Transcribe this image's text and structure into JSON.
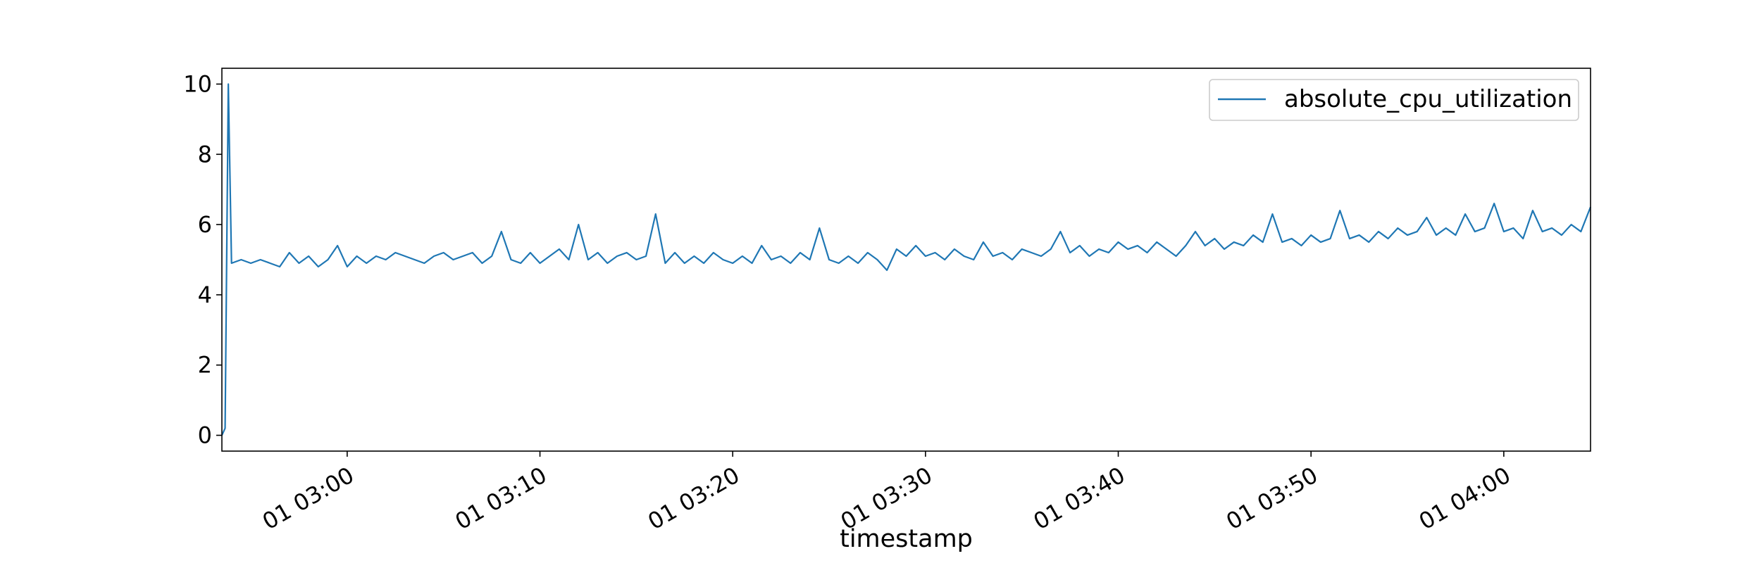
{
  "chart_data": {
    "type": "line",
    "title": "",
    "xlabel": "timestamp",
    "ylabel": "",
    "ylim": [
      -0.45,
      10.45
    ],
    "xlim": [
      "01 02:53:30",
      "01 04:04:30"
    ],
    "grid": false,
    "legend": {
      "placement": "top-right",
      "entries": [
        "absolute_cpu_utilization"
      ]
    },
    "colors": {
      "series": "#1f77b4",
      "axes": "#000000",
      "background": "#ffffff"
    },
    "yticks": [
      {
        "value": 0,
        "label": "0"
      },
      {
        "value": 2,
        "label": "2"
      },
      {
        "value": 4,
        "label": "4"
      },
      {
        "value": 6,
        "label": "6"
      },
      {
        "value": 8,
        "label": "8"
      },
      {
        "value": 10,
        "label": "10"
      }
    ],
    "xticks": [
      {
        "value": "01 03:00:00",
        "label": "01 03:00"
      },
      {
        "value": "01 03:10:00",
        "label": "01 03:10"
      },
      {
        "value": "01 03:20:00",
        "label": "01 03:20"
      },
      {
        "value": "01 03:30:00",
        "label": "01 03:30"
      },
      {
        "value": "01 03:40:00",
        "label": "01 03:40"
      },
      {
        "value": "01 03:50:00",
        "label": "01 03:50"
      },
      {
        "value": "01 04:00:00",
        "label": "01 04:00"
      }
    ],
    "series": [
      {
        "name": "absolute_cpu_utilization",
        "points": [
          [
            "01 02:53:30",
            0.0
          ],
          [
            "01 02:53:40",
            0.2
          ],
          [
            "01 02:53:50",
            10.0
          ],
          [
            "01 02:54:00",
            4.9
          ],
          [
            "01 02:54:30",
            5.0
          ],
          [
            "01 02:55:00",
            4.9
          ],
          [
            "01 02:55:30",
            5.0
          ],
          [
            "01 02:56:00",
            4.9
          ],
          [
            "01 02:56:30",
            4.8
          ],
          [
            "01 02:57:00",
            5.2
          ],
          [
            "01 02:57:30",
            4.9
          ],
          [
            "01 02:58:00",
            5.1
          ],
          [
            "01 02:58:30",
            4.8
          ],
          [
            "01 02:59:00",
            5.0
          ],
          [
            "01 02:59:30",
            5.4
          ],
          [
            "01 03:00:00",
            4.8
          ],
          [
            "01 03:00:30",
            5.1
          ],
          [
            "01 03:01:00",
            4.9
          ],
          [
            "01 03:01:30",
            5.1
          ],
          [
            "01 03:02:00",
            5.0
          ],
          [
            "01 03:02:30",
            5.2
          ],
          [
            "01 03:03:00",
            5.1
          ],
          [
            "01 03:03:30",
            5.0
          ],
          [
            "01 03:04:00",
            4.9
          ],
          [
            "01 03:04:30",
            5.1
          ],
          [
            "01 03:05:00",
            5.2
          ],
          [
            "01 03:05:30",
            5.0
          ],
          [
            "01 03:06:00",
            5.1
          ],
          [
            "01 03:06:30",
            5.2
          ],
          [
            "01 03:07:00",
            4.9
          ],
          [
            "01 03:07:30",
            5.1
          ],
          [
            "01 03:08:00",
            5.8
          ],
          [
            "01 03:08:30",
            5.0
          ],
          [
            "01 03:09:00",
            4.9
          ],
          [
            "01 03:09:30",
            5.2
          ],
          [
            "01 03:10:00",
            4.9
          ],
          [
            "01 03:10:30",
            5.1
          ],
          [
            "01 03:11:00",
            5.3
          ],
          [
            "01 03:11:30",
            5.0
          ],
          [
            "01 03:12:00",
            6.0
          ],
          [
            "01 03:12:30",
            5.0
          ],
          [
            "01 03:13:00",
            5.2
          ],
          [
            "01 03:13:30",
            4.9
          ],
          [
            "01 03:14:00",
            5.1
          ],
          [
            "01 03:14:30",
            5.2
          ],
          [
            "01 03:15:00",
            5.0
          ],
          [
            "01 03:15:30",
            5.1
          ],
          [
            "01 03:16:00",
            6.3
          ],
          [
            "01 03:16:30",
            4.9
          ],
          [
            "01 03:17:00",
            5.2
          ],
          [
            "01 03:17:30",
            4.9
          ],
          [
            "01 03:18:00",
            5.1
          ],
          [
            "01 03:18:30",
            4.9
          ],
          [
            "01 03:19:00",
            5.2
          ],
          [
            "01 03:19:30",
            5.0
          ],
          [
            "01 03:20:00",
            4.9
          ],
          [
            "01 03:20:30",
            5.1
          ],
          [
            "01 03:21:00",
            4.9
          ],
          [
            "01 03:21:30",
            5.4
          ],
          [
            "01 03:22:00",
            5.0
          ],
          [
            "01 03:22:30",
            5.1
          ],
          [
            "01 03:23:00",
            4.9
          ],
          [
            "01 03:23:30",
            5.2
          ],
          [
            "01 03:24:00",
            5.0
          ],
          [
            "01 03:24:30",
            5.9
          ],
          [
            "01 03:25:00",
            5.0
          ],
          [
            "01 03:25:30",
            4.9
          ],
          [
            "01 03:26:00",
            5.1
          ],
          [
            "01 03:26:30",
            4.9
          ],
          [
            "01 03:27:00",
            5.2
          ],
          [
            "01 03:27:30",
            5.0
          ],
          [
            "01 03:28:00",
            4.7
          ],
          [
            "01 03:28:30",
            5.3
          ],
          [
            "01 03:29:00",
            5.1
          ],
          [
            "01 03:29:30",
            5.4
          ],
          [
            "01 03:30:00",
            5.1
          ],
          [
            "01 03:30:30",
            5.2
          ],
          [
            "01 03:31:00",
            5.0
          ],
          [
            "01 03:31:30",
            5.3
          ],
          [
            "01 03:32:00",
            5.1
          ],
          [
            "01 03:32:30",
            5.0
          ],
          [
            "01 03:33:00",
            5.5
          ],
          [
            "01 03:33:30",
            5.1
          ],
          [
            "01 03:34:00",
            5.2
          ],
          [
            "01 03:34:30",
            5.0
          ],
          [
            "01 03:35:00",
            5.3
          ],
          [
            "01 03:35:30",
            5.2
          ],
          [
            "01 03:36:00",
            5.1
          ],
          [
            "01 03:36:30",
            5.3
          ],
          [
            "01 03:37:00",
            5.8
          ],
          [
            "01 03:37:30",
            5.2
          ],
          [
            "01 03:38:00",
            5.4
          ],
          [
            "01 03:38:30",
            5.1
          ],
          [
            "01 03:39:00",
            5.3
          ],
          [
            "01 03:39:30",
            5.2
          ],
          [
            "01 03:40:00",
            5.5
          ],
          [
            "01 03:40:30",
            5.3
          ],
          [
            "01 03:41:00",
            5.4
          ],
          [
            "01 03:41:30",
            5.2
          ],
          [
            "01 03:42:00",
            5.5
          ],
          [
            "01 03:42:30",
            5.3
          ],
          [
            "01 03:43:00",
            5.1
          ],
          [
            "01 03:43:30",
            5.4
          ],
          [
            "01 03:44:00",
            5.8
          ],
          [
            "01 03:44:30",
            5.4
          ],
          [
            "01 03:45:00",
            5.6
          ],
          [
            "01 03:45:30",
            5.3
          ],
          [
            "01 03:46:00",
            5.5
          ],
          [
            "01 03:46:30",
            5.4
          ],
          [
            "01 03:47:00",
            5.7
          ],
          [
            "01 03:47:30",
            5.5
          ],
          [
            "01 03:48:00",
            6.3
          ],
          [
            "01 03:48:30",
            5.5
          ],
          [
            "01 03:49:00",
            5.6
          ],
          [
            "01 03:49:30",
            5.4
          ],
          [
            "01 03:50:00",
            5.7
          ],
          [
            "01 03:50:30",
            5.5
          ],
          [
            "01 03:51:00",
            5.6
          ],
          [
            "01 03:51:30",
            6.4
          ],
          [
            "01 03:52:00",
            5.6
          ],
          [
            "01 03:52:30",
            5.7
          ],
          [
            "01 03:53:00",
            5.5
          ],
          [
            "01 03:53:30",
            5.8
          ],
          [
            "01 03:54:00",
            5.6
          ],
          [
            "01 03:54:30",
            5.9
          ],
          [
            "01 03:55:00",
            5.7
          ],
          [
            "01 03:55:30",
            5.8
          ],
          [
            "01 03:56:00",
            6.2
          ],
          [
            "01 03:56:30",
            5.7
          ],
          [
            "01 03:57:00",
            5.9
          ],
          [
            "01 03:57:30",
            5.7
          ],
          [
            "01 03:58:00",
            6.3
          ],
          [
            "01 03:58:30",
            5.8
          ],
          [
            "01 03:59:00",
            5.9
          ],
          [
            "01 03:59:30",
            6.6
          ],
          [
            "01 04:00:00",
            5.8
          ],
          [
            "01 04:00:30",
            5.9
          ],
          [
            "01 04:01:00",
            5.6
          ],
          [
            "01 04:01:30",
            6.4
          ],
          [
            "01 04:02:00",
            5.8
          ],
          [
            "01 04:02:30",
            5.9
          ],
          [
            "01 04:03:00",
            5.7
          ],
          [
            "01 04:03:30",
            6.0
          ],
          [
            "01 04:04:00",
            5.8
          ],
          [
            "01 04:04:30",
            6.5
          ]
        ]
      }
    ]
  }
}
